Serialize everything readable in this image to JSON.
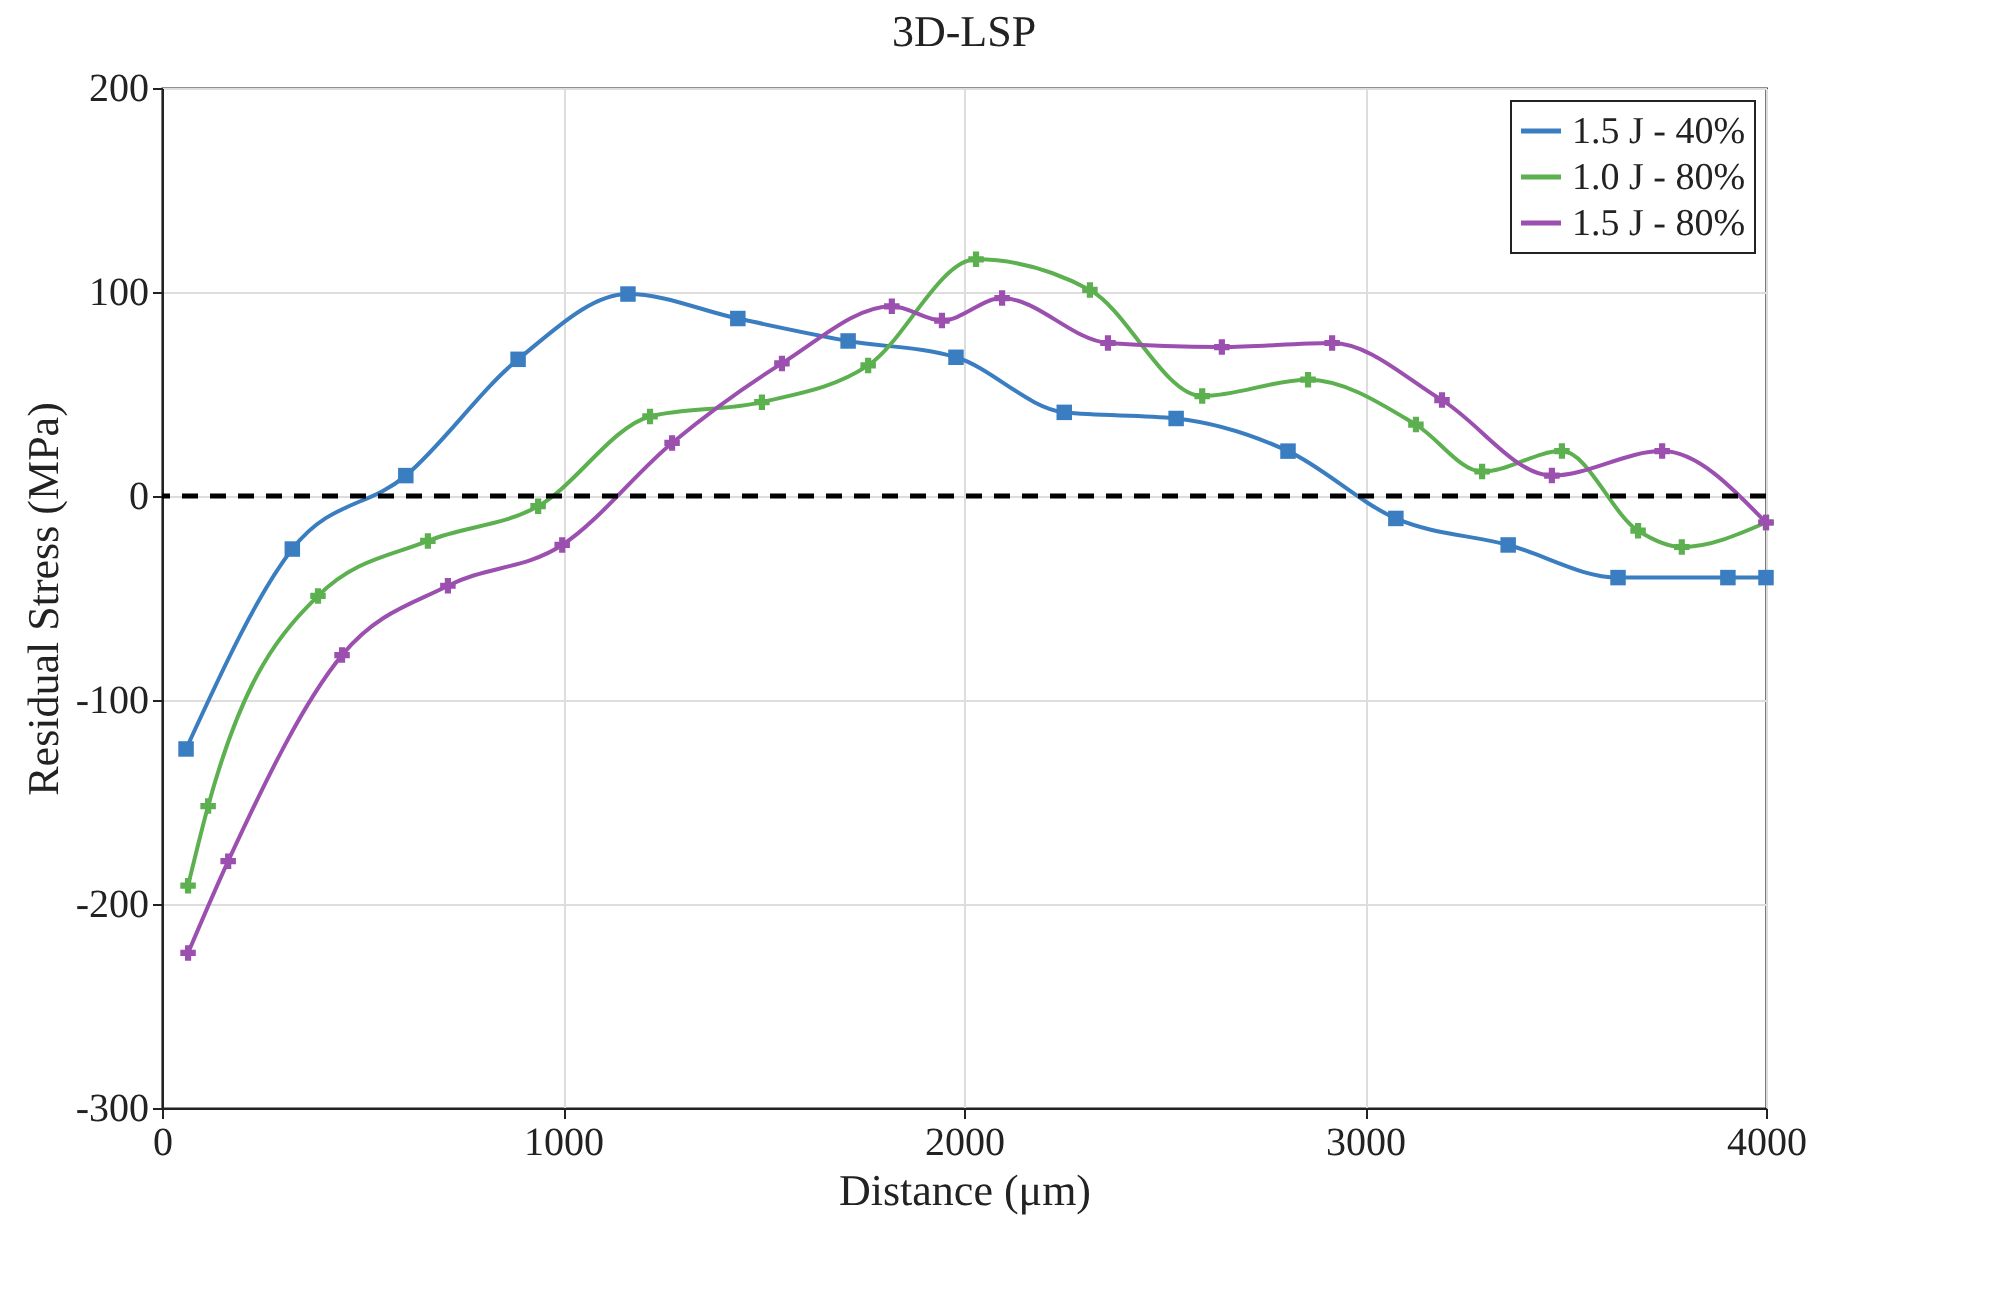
{
  "chart_data": {
    "type": "line",
    "title": "3D-LSP",
    "xlabel": "Distance (μm)",
    "ylabel": "Residual Stress (MPa)",
    "xlim": [
      0,
      4000
    ],
    "ylim": [
      -300,
      200
    ],
    "xticks": [
      0,
      1000,
      2000,
      3000,
      4000
    ],
    "yticks": [
      -300,
      -200,
      -100,
      0,
      100,
      200
    ],
    "grid": true,
    "legend": "top right",
    "line_style": "solid",
    "ref_lines": [
      {
        "axis": "y",
        "value": 0,
        "line_style": "dashed",
        "color": "#000000"
      }
    ],
    "series": [
      {
        "name": "1.5 J - 40%",
        "color": "#3a7dc0",
        "marker": "square",
        "x": [
          60,
          325,
          608,
          888,
          1162,
          1436,
          1711,
          1980,
          2250,
          2529,
          2808,
          3077,
          3357,
          3631,
          3905,
          4000
        ],
        "values": [
          -124,
          -26,
          10,
          67,
          99,
          87,
          76,
          68,
          41,
          38,
          22,
          -11,
          -24,
          -40,
          -40,
          -40
        ]
      },
      {
        "name": "1.0 J - 80%",
        "color": "#5cb04f",
        "marker": "cross",
        "x": [
          65,
          115,
          389,
          663,
          938,
          1217,
          1496,
          1761,
          2030,
          2314,
          2594,
          2858,
          3127,
          3292,
          3491,
          3681,
          3790,
          4000
        ],
        "values": [
          -191,
          -152,
          -49,
          -22,
          -5,
          39,
          46,
          64,
          116,
          101,
          49,
          57,
          35,
          12,
          22,
          -17,
          -25,
          -13
        ]
      },
      {
        "name": "1.5 J - 80%",
        "color": "#9b4fae",
        "marker": "cross",
        "x": [
          65,
          165,
          449,
          713,
          998,
          1272,
          1546,
          1820,
          1945,
          2095,
          2359,
          2643,
          2918,
          3192,
          3466,
          3741,
          4000
        ],
        "values": [
          -224,
          -179,
          -78,
          -44,
          -24,
          26,
          65,
          93,
          86,
          97,
          75,
          73,
          75,
          47,
          10,
          22,
          -13
        ]
      }
    ]
  }
}
